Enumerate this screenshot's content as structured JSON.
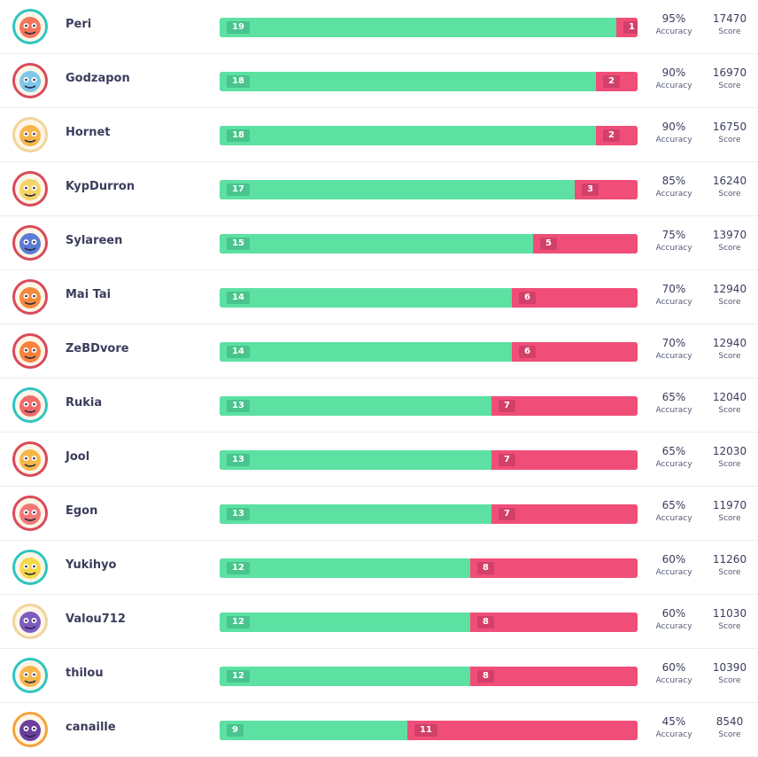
{
  "labels": {
    "accuracy": "Accuracy",
    "score": "Score"
  },
  "colors": {
    "correct": "#5ce1a3",
    "wrong": "#f04e78",
    "correct_chip": "#48c48c",
    "wrong_chip": "#d2406a",
    "text": "#3a3d5c"
  },
  "players": [
    {
      "name": "Peri",
      "avatar": "red-monster-avatar",
      "avatar_color": "#f1765c",
      "ring": "#2ec5c1",
      "correct": 19,
      "wrong": 1,
      "accuracy": "95%",
      "score": "17470"
    },
    {
      "name": "Godzapon",
      "avatar": "shark-avatar",
      "avatar_color": "#7ec7e8",
      "ring": "#d94a5a",
      "correct": 18,
      "wrong": 2,
      "accuracy": "90%",
      "score": "16970"
    },
    {
      "name": "Hornet",
      "avatar": "fox-monster-avatar",
      "avatar_color": "#f7b64a",
      "ring": "#f2d49a",
      "correct": 18,
      "wrong": 2,
      "accuracy": "90%",
      "score": "16750"
    },
    {
      "name": "KypDurron",
      "avatar": "avocado-avatar",
      "avatar_color": "#f5d466",
      "ring": "#d94a5a",
      "correct": 17,
      "wrong": 3,
      "accuracy": "85%",
      "score": "16240"
    },
    {
      "name": "Sylareen",
      "avatar": "angry-blue-monster-avatar",
      "avatar_color": "#5b7bd6",
      "ring": "#d94a5a",
      "correct": 15,
      "wrong": 5,
      "accuracy": "75%",
      "score": "13970"
    },
    {
      "name": "Mai Tai",
      "avatar": "jar-monster-avatar",
      "avatar_color": "#f28a3d",
      "ring": "#d94a5a",
      "correct": 14,
      "wrong": 6,
      "accuracy": "70%",
      "score": "12940"
    },
    {
      "name": "ZeBDvore",
      "avatar": "orange-monster-avatar",
      "avatar_color": "#f7833c",
      "ring": "#d94a5a",
      "correct": 14,
      "wrong": 6,
      "accuracy": "70%",
      "score": "12940"
    },
    {
      "name": "Rukia",
      "avatar": "snail-avatar",
      "avatar_color": "#f26b6b",
      "ring": "#2ec5c1",
      "correct": 13,
      "wrong": 7,
      "accuracy": "65%",
      "score": "12040"
    },
    {
      "name": "Jool",
      "avatar": "goggles-monster-avatar",
      "avatar_color": "#f7b64a",
      "ring": "#d94a5a",
      "correct": 13,
      "wrong": 7,
      "accuracy": "65%",
      "score": "12030"
    },
    {
      "name": "Egon",
      "avatar": "pink-monster-avatar",
      "avatar_color": "#f27878",
      "ring": "#d94a5a",
      "correct": 13,
      "wrong": 7,
      "accuracy": "65%",
      "score": "11970"
    },
    {
      "name": "Yukihyo",
      "avatar": "rainbow-cloud-avatar",
      "avatar_color": "#f7d74a",
      "ring": "#2ec5c1",
      "correct": 12,
      "wrong": 8,
      "accuracy": "60%",
      "score": "11260"
    },
    {
      "name": "Valou712",
      "avatar": "purple-monster-avatar",
      "avatar_color": "#7d5bbf",
      "ring": "#f2d49a",
      "correct": 12,
      "wrong": 8,
      "accuracy": "60%",
      "score": "11030"
    },
    {
      "name": "thilou",
      "avatar": "sunglasses-monster-avatar",
      "avatar_color": "#f7b64a",
      "ring": "#2ec5c1",
      "correct": 12,
      "wrong": 8,
      "accuracy": "60%",
      "score": "10390"
    },
    {
      "name": "canaille",
      "avatar": "ice-cream-avatar",
      "avatar_color": "#6b3fa0",
      "ring": "#f5a33a",
      "correct": 9,
      "wrong": 11,
      "accuracy": "45%",
      "score": "8540"
    }
  ]
}
